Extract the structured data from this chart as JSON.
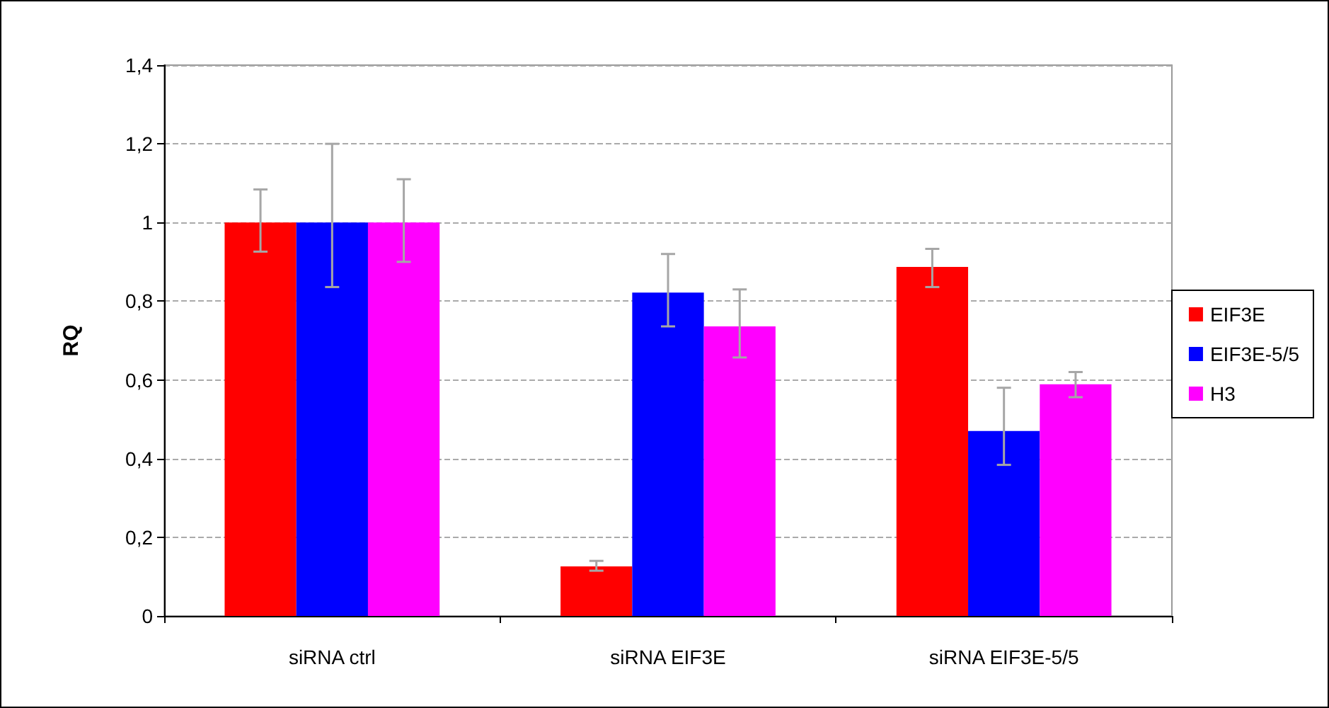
{
  "chart_data": {
    "type": "bar",
    "ylabel": "RQ",
    "categories": [
      "siRNA ctrl",
      "siRNA EIF3E",
      "siRNA EIF3E-5/5"
    ],
    "series": [
      {
        "name": "EIF3E",
        "color": "#ff0000",
        "values": [
          1,
          0.126,
          0.887
        ],
        "errors": [
          [
            0.926,
            1.084
          ],
          [
            0.115,
            0.14
          ],
          [
            0.836,
            0.933
          ]
        ]
      },
      {
        "name": "EIF3E-5/5",
        "color": "#0000ff",
        "values": [
          1,
          0.822,
          0.47
        ],
        "errors": [
          [
            0.836,
            1.2
          ],
          [
            0.736,
            0.92
          ],
          [
            0.384,
            0.58
          ]
        ]
      },
      {
        "name": "H3",
        "color": "#ff00ff",
        "values": [
          1,
          0.736,
          0.589
        ],
        "errors": [
          [
            0.9,
            1.11
          ],
          [
            0.657,
            0.83
          ],
          [
            0.556,
            0.62
          ]
        ]
      }
    ],
    "ylim": [
      0,
      1.4
    ],
    "yticks": [
      0,
      {
        "value": 0.2,
        "label": "0,2"
      },
      {
        "value": 0.4,
        "label": "0,4"
      },
      {
        "value": 0.6,
        "label": "0,6"
      },
      {
        "value": 0.8,
        "label": "0,8"
      },
      1,
      {
        "value": 1.2,
        "label": "1,2"
      },
      {
        "value": 1.4,
        "label": "1,4"
      }
    ],
    "grid": "y",
    "legend": "right"
  }
}
